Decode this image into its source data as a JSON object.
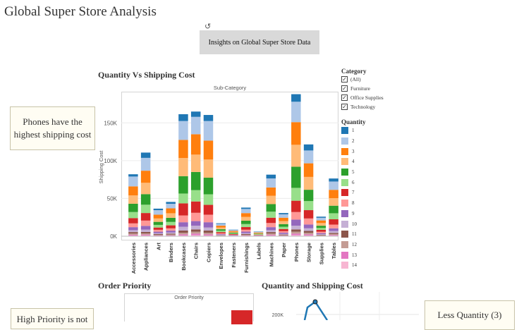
{
  "app": {
    "title": "Global Super Store Analysis"
  },
  "toolbar": {
    "refresh_icon": "refresh-icon",
    "insights_label": "Insights on Global Super Store Data"
  },
  "sections": {
    "qvs_title": "Quantity Vs Shipping Cost",
    "order_priority_title": "Order Priority",
    "quantity_shipping_title": "Quantity and Shipping Cost"
  },
  "annotations": {
    "phones": "Phones have the highest shipping cost",
    "priority": "High Priority is not",
    "quantity": "Less Quantity (3)"
  },
  "filters": {
    "category_label": "Category",
    "items": [
      {
        "label": "(All)",
        "checked": true
      },
      {
        "label": "Furniture",
        "checked": true
      },
      {
        "label": "Office Supplies",
        "checked": true
      },
      {
        "label": "Technology",
        "checked": true
      }
    ],
    "quantity_label": "Quantity",
    "quantity_items": [
      {
        "label": "1",
        "color": "#1f77b4"
      },
      {
        "label": "2",
        "color": "#aec7e8"
      },
      {
        "label": "3",
        "color": "#ff7f0e"
      },
      {
        "label": "4",
        "color": "#ffbb78"
      },
      {
        "label": "5",
        "color": "#2ca02c"
      },
      {
        "label": "6",
        "color": "#98df8a"
      },
      {
        "label": "7",
        "color": "#d62728"
      },
      {
        "label": "8",
        "color": "#ff9896"
      },
      {
        "label": "9",
        "color": "#9467bd"
      },
      {
        "label": "10",
        "color": "#c5b0d5"
      },
      {
        "label": "11",
        "color": "#8c564b"
      },
      {
        "label": "12",
        "color": "#c49c94"
      },
      {
        "label": "13",
        "color": "#e377c2"
      },
      {
        "label": "14",
        "color": "#f7b6d2"
      }
    ]
  },
  "chart_data": [
    {
      "type": "bar",
      "stacked": true,
      "title": "Sub-Category",
      "ylabel": "Shipping Cost",
      "ylim": [
        0,
        190000
      ],
      "yticks": [
        0,
        50000,
        100000,
        150000
      ],
      "ytick_labels": [
        "0K",
        "50K",
        "100K",
        "150K"
      ],
      "categories": [
        "Accessories",
        "Appliances",
        "Art",
        "Binders",
        "Bookcases",
        "Chairs",
        "Copiers",
        "Envelopes",
        "Fasteners",
        "Furnishings",
        "Labels",
        "Machines",
        "Paper",
        "Phones",
        "Storage",
        "Supplies",
        "Tables"
      ],
      "stack_order": [
        "14",
        "13",
        "12",
        "11",
        "10",
        "9",
        "8",
        "7",
        "6",
        "5",
        "4",
        "3",
        "2",
        "1"
      ],
      "series": [
        {
          "name": "1",
          "values": [
            3000,
            7000,
            2000,
            2500,
            9000,
            7000,
            8000,
            800,
            400,
            1800,
            300,
            5000,
            1700,
            10000,
            8000,
            1500,
            4000
          ]
        },
        {
          "name": "2",
          "values": [
            13000,
            17000,
            6000,
            6000,
            25000,
            23000,
            26000,
            2400,
            1200,
            5500,
            800,
            12000,
            4500,
            27000,
            17000,
            3500,
            11000
          ]
        },
        {
          "name": "3",
          "values": [
            12000,
            16000,
            5000,
            6500,
            24000,
            27000,
            25000,
            2500,
            1300,
            5000,
            900,
            11000,
            4500,
            30000,
            18000,
            3500,
            11000
          ]
        },
        {
          "name": "4",
          "values": [
            11000,
            15000,
            4500,
            6000,
            24000,
            23000,
            24000,
            2200,
            1100,
            5000,
            700,
            11000,
            4000,
            29000,
            17000,
            3500,
            10000
          ]
        },
        {
          "name": "5",
          "values": [
            11000,
            14000,
            4000,
            5500,
            23000,
            24000,
            22000,
            2000,
            1000,
            4500,
            700,
            10000,
            3500,
            28000,
            15000,
            3000,
            10000
          ]
        },
        {
          "name": "6",
          "values": [
            8000,
            11000,
            3500,
            4500,
            13000,
            15000,
            14000,
            1800,
            900,
            4000,
            600,
            8000,
            3000,
            17000,
            12000,
            2500,
            8000
          ]
        },
        {
          "name": "7",
          "values": [
            7000,
            10000,
            3000,
            4000,
            16000,
            15000,
            13000,
            1600,
            800,
            3500,
            500,
            7000,
            2800,
            15000,
            11000,
            2500,
            7000
          ]
        },
        {
          "name": "8",
          "values": [
            5000,
            7000,
            2500,
            3000,
            9000,
            11000,
            10000,
            1200,
            600,
            2500,
            400,
            5500,
            2000,
            10000,
            8000,
            1800,
            5000
          ]
        },
        {
          "name": "9",
          "values": [
            4000,
            5000,
            2000,
            2500,
            6000,
            6000,
            7000,
            900,
            500,
            2000,
            350,
            4000,
            1500,
            8000,
            5000,
            1300,
            3500
          ]
        },
        {
          "name": "10",
          "values": [
            2500,
            3000,
            1200,
            1500,
            5000,
            5000,
            4000,
            600,
            300,
            1300,
            250,
            2500,
            1000,
            5000,
            3500,
            900,
            2500
          ]
        },
        {
          "name": "11",
          "values": [
            2000,
            2000,
            1000,
            1200,
            3000,
            3000,
            3000,
            400,
            200,
            1000,
            200,
            2000,
            800,
            3000,
            2500,
            700,
            1500
          ]
        },
        {
          "name": "12",
          "values": [
            1500,
            1500,
            800,
            1000,
            2000,
            2500,
            2000,
            300,
            150,
            800,
            150,
            1500,
            600,
            2500,
            2000,
            500,
            1200
          ]
        },
        {
          "name": "13",
          "values": [
            1200,
            1200,
            600,
            700,
            1500,
            2000,
            1500,
            250,
            120,
            600,
            120,
            1200,
            500,
            2000,
            1500,
            400,
            1000
          ]
        },
        {
          "name": "14",
          "values": [
            800,
            1000,
            400,
            500,
            1000,
            1500,
            1000,
            200,
            100,
            400,
            100,
            800,
            300,
            1500,
            1000,
            300,
            700
          ]
        }
      ]
    },
    {
      "type": "bar",
      "title": "Order Priority",
      "note": "only partially visible"
    },
    {
      "type": "line",
      "title": "Quantity and Shipping Cost",
      "yticks": [
        200000
      ],
      "ytick_labels": [
        "200K"
      ],
      "note": "only partially visible"
    }
  ]
}
